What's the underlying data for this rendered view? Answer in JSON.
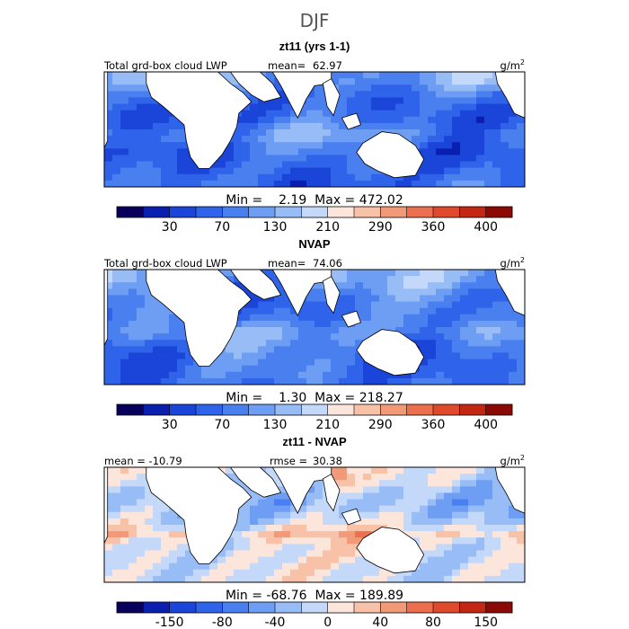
{
  "title": "DJF",
  "colors": {
    "abs": [
      "#08005a",
      "#0a1fb0",
      "#1a45d8",
      "#2e63ea",
      "#4a7ff0",
      "#6e9ef3",
      "#98bdf6",
      "#c4d9fa",
      "#fce6dc",
      "#f8c2a8",
      "#f29a78",
      "#ec7050",
      "#e04a2c",
      "#c42614",
      "#8c0a05"
    ],
    "diff": [
      "#08005a",
      "#0a1fb0",
      "#1a45d8",
      "#2e63ea",
      "#4a7ff0",
      "#6e9ef3",
      "#98bdf6",
      "#c4d9fa",
      "#fce6dc",
      "#f8c2a8",
      "#f29a78",
      "#ec7050",
      "#e04a2c",
      "#c42614",
      "#8c0a05"
    ],
    "land": "#ffffff"
  },
  "chart_data": [
    {
      "type": "heatmap",
      "subtitle": "zt11 (yrs 1-1)",
      "left_label": "Total grd-box cloud LWP",
      "mean_label": "mean=",
      "mean_value": "62.97",
      "units": "g/m",
      "units_sup": "2",
      "min_max": "Min =    2.19  Max = 472.02",
      "colorbar_ticks": [
        "30",
        "70",
        "130",
        "210",
        "290",
        "360",
        "400"
      ],
      "palette": "abs",
      "field_bias": 0.0
    },
    {
      "type": "heatmap",
      "subtitle": "NVAP",
      "left_label": "Total grd-box cloud LWP",
      "mean_label": "mean=",
      "mean_value": "74.06",
      "units": "g/m",
      "units_sup": "2",
      "min_max": "Min =    1.30  Max = 218.27",
      "colorbar_ticks": [
        "30",
        "70",
        "130",
        "210",
        "290",
        "360",
        "400"
      ],
      "palette": "abs",
      "field_bias": 0.4
    },
    {
      "type": "heatmap",
      "subtitle": "zt11 - NVAP",
      "left_label": "mean = -10.79",
      "mean_label": "rmse =",
      "mean_value": "30.38",
      "units": "g/m",
      "units_sup": "2",
      "min_max": "Min = -68.76  Max = 189.89",
      "colorbar_ticks": [
        "-150",
        "-80",
        "-40",
        "0",
        "40",
        "80",
        "150"
      ],
      "palette": "diff",
      "field_bias": -1.0
    }
  ]
}
